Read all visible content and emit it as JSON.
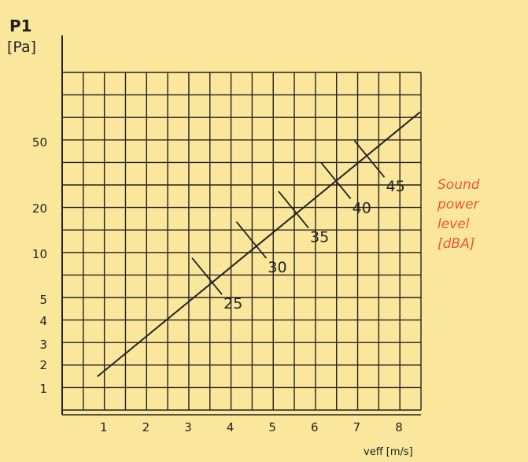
{
  "chart_data": {
    "type": "line",
    "ylabel_line1": "P1",
    "ylabel_line2": "[Pa]",
    "xlabel": "veff [m/s]",
    "x_ticks": [
      "1",
      "2",
      "3",
      "4",
      "5",
      "6",
      "7",
      "8"
    ],
    "y_ticks": [
      "1",
      "2",
      "3",
      "4",
      "5",
      "10",
      "20",
      "50"
    ],
    "y_scale": "log",
    "xlim": [
      0,
      8.5
    ],
    "grid": true,
    "line": [
      {
        "x": 0.85,
        "y": 1.2
      },
      {
        "x": 8.5,
        "y": 80
      }
    ],
    "markers": [
      {
        "label": "25",
        "x": 3.45,
        "y": 5.9
      },
      {
        "label": "30",
        "x": 4.5,
        "y": 10.5
      },
      {
        "label": "35",
        "x": 5.5,
        "y": 17
      },
      {
        "label": "40",
        "x": 6.5,
        "y": 27
      },
      {
        "label": "45",
        "x": 7.3,
        "y": 38
      }
    ],
    "side_label": [
      "Sound",
      "power",
      "level",
      "[dBA]"
    ],
    "colors": {
      "background": "#fbe79b",
      "ink": "#222222",
      "accent": "#e9543a"
    }
  }
}
